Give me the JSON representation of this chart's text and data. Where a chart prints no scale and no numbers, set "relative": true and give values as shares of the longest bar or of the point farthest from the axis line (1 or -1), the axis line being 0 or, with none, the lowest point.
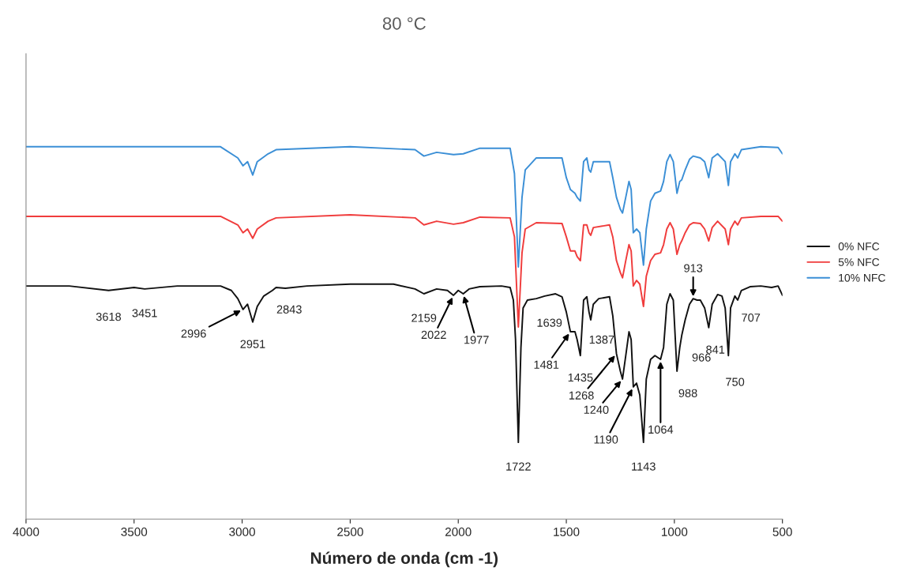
{
  "chart_data": {
    "type": "line",
    "title": "80 °C",
    "xlabel": "Número de onda (cm -1)",
    "relative": true,
    "xlim": [
      4000,
      500
    ],
    "xticks": [
      4000,
      3500,
      3000,
      2500,
      2000,
      1500,
      1000,
      500
    ],
    "grid": false,
    "legend": "right",
    "marker": "none",
    "line_style": "solid",
    "series": [
      {
        "name": "0% NFC",
        "color": "#111111",
        "x": [
          4000,
          3800,
          3618,
          3500,
          3451,
          3300,
          3100,
          3050,
          3020,
          2996,
          2975,
          2951,
          2930,
          2900,
          2860,
          2843,
          2800,
          2700,
          2500,
          2300,
          2200,
          2159,
          2100,
          2050,
          2022,
          2000,
          1977,
          1950,
          1900,
          1800,
          1760,
          1745,
          1735,
          1722,
          1710,
          1700,
          1680,
          1639,
          1600,
          1550,
          1520,
          1500,
          1481,
          1460,
          1450,
          1435,
          1420,
          1405,
          1395,
          1387,
          1375,
          1350,
          1300,
          1285,
          1268,
          1250,
          1240,
          1225,
          1210,
          1200,
          1190,
          1175,
          1160,
          1143,
          1130,
          1110,
          1090,
          1064,
          1050,
          1035,
          1020,
          1005,
          988,
          975,
          966,
          950,
          930,
          913,
          895,
          880,
          860,
          841,
          825,
          800,
          780,
          765,
          750,
          740,
          720,
          707,
          690,
          650,
          600,
          550,
          520,
          500
        ],
        "values": [
          0.626,
          0.626,
          0.614,
          0.622,
          0.618,
          0.626,
          0.626,
          0.614,
          0.592,
          0.563,
          0.577,
          0.529,
          0.571,
          0.599,
          0.614,
          0.622,
          0.62,
          0.626,
          0.631,
          0.631,
          0.618,
          0.605,
          0.618,
          0.614,
          0.601,
          0.614,
          0.605,
          0.618,
          0.624,
          0.626,
          0.622,
          0.588,
          0.482,
          0.206,
          0.461,
          0.567,
          0.588,
          0.592,
          0.599,
          0.605,
          0.597,
          0.556,
          0.503,
          0.503,
          0.482,
          0.439,
          0.588,
          0.597,
          0.556,
          0.535,
          0.577,
          0.592,
          0.597,
          0.546,
          0.444,
          0.397,
          0.376,
          0.439,
          0.503,
          0.482,
          0.355,
          0.365,
          0.333,
          0.206,
          0.376,
          0.429,
          0.439,
          0.429,
          0.461,
          0.577,
          0.605,
          0.588,
          0.397,
          0.461,
          0.493,
          0.535,
          0.577,
          0.592,
          0.588,
          0.588,
          0.567,
          0.514,
          0.577,
          0.603,
          0.599,
          0.567,
          0.439,
          0.567,
          0.599,
          0.588,
          0.614,
          0.624,
          0.626,
          0.622,
          0.626,
          0.601
        ]
      },
      {
        "name": "5% NFC",
        "color": "#f03c3c",
        "x": [
          4000,
          3100,
          3020,
          2996,
          2975,
          2951,
          2930,
          2880,
          2843,
          2500,
          2200,
          2159,
          2100,
          2022,
          1977,
          1900,
          1760,
          1740,
          1722,
          1705,
          1690,
          1639,
          1520,
          1500,
          1481,
          1460,
          1450,
          1435,
          1420,
          1405,
          1395,
          1387,
          1375,
          1300,
          1285,
          1268,
          1250,
          1240,
          1225,
          1210,
          1200,
          1190,
          1175,
          1160,
          1143,
          1130,
          1110,
          1090,
          1064,
          1050,
          1035,
          1020,
          1005,
          988,
          975,
          966,
          950,
          930,
          913,
          880,
          860,
          841,
          825,
          800,
          765,
          750,
          740,
          720,
          707,
          690,
          600,
          520,
          500
        ],
        "values": [
          0.813,
          0.813,
          0.79,
          0.769,
          0.779,
          0.754,
          0.779,
          0.8,
          0.809,
          0.817,
          0.809,
          0.79,
          0.8,
          0.792,
          0.796,
          0.811,
          0.809,
          0.758,
          0.516,
          0.715,
          0.779,
          0.796,
          0.794,
          0.758,
          0.72,
          0.72,
          0.705,
          0.694,
          0.79,
          0.79,
          0.769,
          0.762,
          0.783,
          0.79,
          0.758,
          0.694,
          0.662,
          0.648,
          0.694,
          0.737,
          0.72,
          0.626,
          0.641,
          0.631,
          0.571,
          0.652,
          0.694,
          0.711,
          0.715,
          0.737,
          0.779,
          0.796,
          0.779,
          0.711,
          0.737,
          0.747,
          0.769,
          0.79,
          0.796,
          0.794,
          0.779,
          0.747,
          0.783,
          0.8,
          0.779,
          0.737,
          0.779,
          0.8,
          0.79,
          0.809,
          0.813,
          0.813,
          0.8
        ]
      },
      {
        "name": "10% NFC",
        "color": "#3b8fd6",
        "x": [
          4000,
          3100,
          3020,
          2996,
          2975,
          2951,
          2930,
          2880,
          2843,
          2500,
          2200,
          2159,
          2100,
          2022,
          1977,
          1900,
          1760,
          1740,
          1722,
          1705,
          1690,
          1639,
          1520,
          1500,
          1481,
          1460,
          1450,
          1435,
          1420,
          1405,
          1395,
          1387,
          1375,
          1300,
          1285,
          1268,
          1250,
          1240,
          1225,
          1210,
          1200,
          1190,
          1175,
          1160,
          1143,
          1130,
          1110,
          1090,
          1064,
          1050,
          1035,
          1020,
          1005,
          988,
          975,
          966,
          950,
          930,
          913,
          880,
          860,
          841,
          825,
          800,
          765,
          750,
          740,
          720,
          707,
          690,
          600,
          520,
          500
        ],
        "values": [
          1.0,
          1.0,
          0.97,
          0.949,
          0.96,
          0.924,
          0.96,
          0.981,
          0.992,
          1.0,
          0.992,
          0.975,
          0.985,
          0.979,
          0.981,
          0.996,
          0.996,
          0.928,
          0.677,
          0.864,
          0.938,
          0.97,
          0.97,
          0.917,
          0.885,
          0.875,
          0.864,
          0.854,
          0.96,
          0.97,
          0.938,
          0.932,
          0.96,
          0.96,
          0.917,
          0.864,
          0.832,
          0.822,
          0.864,
          0.907,
          0.885,
          0.769,
          0.779,
          0.769,
          0.682,
          0.779,
          0.854,
          0.875,
          0.881,
          0.907,
          0.96,
          0.979,
          0.96,
          0.875,
          0.907,
          0.911,
          0.938,
          0.966,
          0.975,
          0.97,
          0.96,
          0.917,
          0.97,
          0.981,
          0.96,
          0.896,
          0.96,
          0.981,
          0.97,
          0.992,
          1.0,
          0.998,
          0.981
        ]
      }
    ],
    "annotations": [
      {
        "text": "3618",
        "x": 3618,
        "y": 0.614
      },
      {
        "text": "3451",
        "x": 3451,
        "y": 0.618
      },
      {
        "text": "2996",
        "x": 2996,
        "y": 0.563
      },
      {
        "text": "2951",
        "x": 2951,
        "y": 0.529
      },
      {
        "text": "2843",
        "x": 2843,
        "y": 0.622
      },
      {
        "text": "2159",
        "x": 2159,
        "y": 0.605
      },
      {
        "text": "2022",
        "x": 2022,
        "y": 0.601
      },
      {
        "text": "1977",
        "x": 1977,
        "y": 0.605
      },
      {
        "text": "1639",
        "x": 1639,
        "y": 0.592
      },
      {
        "text": "1481",
        "x": 1481,
        "y": 0.503
      },
      {
        "text": "1435",
        "x": 1435,
        "y": 0.439
      },
      {
        "text": "1387",
        "x": 1387,
        "y": 0.535
      },
      {
        "text": "1268",
        "x": 1268,
        "y": 0.444
      },
      {
        "text": "1240",
        "x": 1240,
        "y": 0.376
      },
      {
        "text": "1190",
        "x": 1190,
        "y": 0.355
      },
      {
        "text": "1143",
        "x": 1143,
        "y": 0.206
      },
      {
        "text": "1064",
        "x": 1064,
        "y": 0.429
      },
      {
        "text": "988",
        "x": 988,
        "y": 0.397
      },
      {
        "text": "966",
        "x": 966,
        "y": 0.493
      },
      {
        "text": "913",
        "x": 913,
        "y": 0.592
      },
      {
        "text": "841",
        "x": 841,
        "y": 0.514
      },
      {
        "text": "750",
        "x": 750,
        "y": 0.439
      },
      {
        "text": "707",
        "x": 707,
        "y": 0.588
      },
      {
        "text": "1722",
        "x": 1722,
        "y": 0.206
      }
    ]
  }
}
